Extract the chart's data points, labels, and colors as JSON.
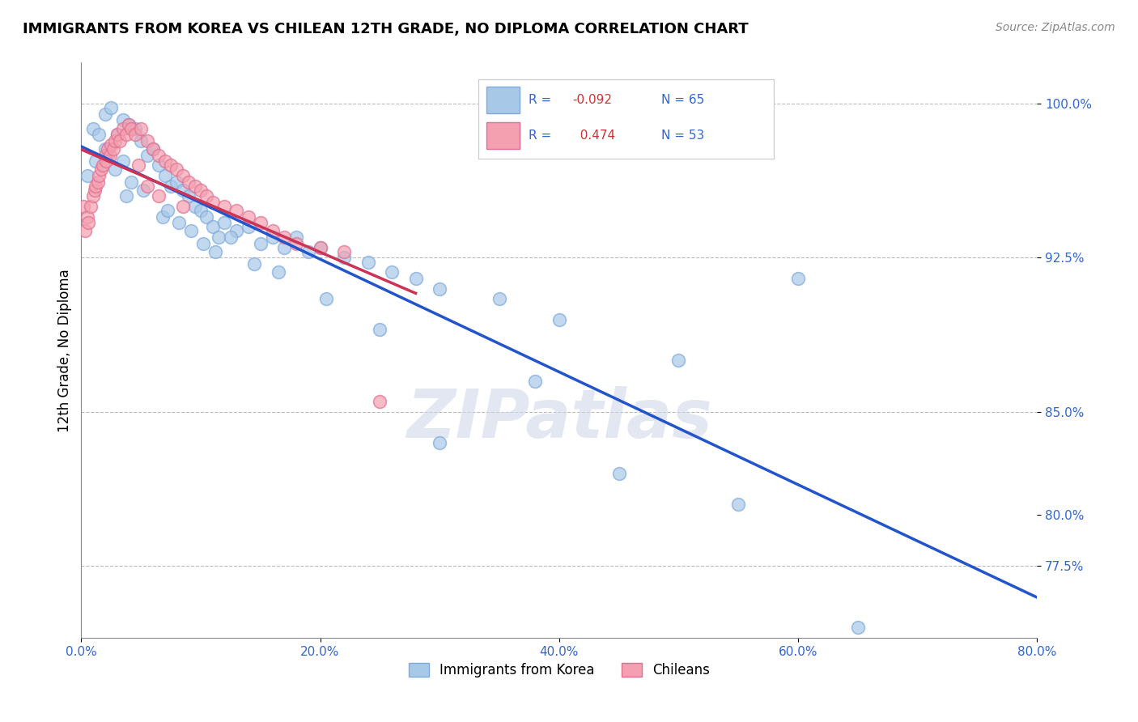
{
  "title": "IMMIGRANTS FROM KOREA VS CHILEAN 12TH GRADE, NO DIPLOMA CORRELATION CHART",
  "source": "Source: ZipAtlas.com",
  "ylabel": "12th Grade, No Diploma",
  "xlim": [
    0.0,
    80.0
  ],
  "ylim": [
    74.0,
    102.0
  ],
  "blue_color": "#a8c8e8",
  "pink_color": "#f4a0b0",
  "blue_edge_color": "#7faadc",
  "pink_edge_color": "#e07090",
  "blue_line_color": "#2255cc",
  "pink_line_color": "#cc3355",
  "watermark": "ZIPatlas",
  "blue_scatter_x": [
    0.5,
    1.0,
    1.5,
    2.0,
    2.0,
    2.5,
    3.0,
    3.5,
    3.5,
    4.0,
    4.5,
    5.0,
    5.5,
    6.0,
    6.5,
    7.0,
    7.5,
    8.0,
    8.5,
    9.0,
    9.5,
    10.0,
    10.5,
    11.0,
    11.5,
    12.0,
    13.0,
    14.0,
    15.0,
    16.0,
    17.0,
    18.0,
    19.0,
    20.0,
    22.0,
    24.0,
    26.0,
    28.0,
    30.0,
    35.0,
    40.0,
    50.0,
    60.0,
    65.0,
    2.2,
    3.8,
    6.8,
    1.2,
    2.8,
    4.2,
    5.2,
    8.2,
    12.5,
    20.5,
    25.0,
    30.0,
    38.0,
    45.0,
    55.0,
    10.2,
    14.5,
    16.5,
    9.2,
    11.2,
    7.2
  ],
  "blue_scatter_y": [
    96.5,
    98.8,
    98.5,
    99.5,
    97.8,
    99.8,
    98.5,
    99.2,
    97.2,
    99.0,
    98.8,
    98.2,
    97.5,
    97.8,
    97.0,
    96.5,
    96.0,
    96.2,
    95.8,
    95.5,
    95.0,
    94.8,
    94.5,
    94.0,
    93.5,
    94.2,
    93.8,
    94.0,
    93.2,
    93.5,
    93.0,
    93.5,
    92.8,
    93.0,
    92.5,
    92.3,
    91.8,
    91.5,
    91.0,
    90.5,
    89.5,
    87.5,
    91.5,
    74.5,
    97.5,
    95.5,
    94.5,
    97.2,
    96.8,
    96.2,
    95.8,
    94.2,
    93.5,
    90.5,
    89.0,
    83.5,
    86.5,
    82.0,
    80.5,
    93.2,
    92.2,
    91.8,
    93.8,
    92.8,
    94.8
  ],
  "pink_scatter_x": [
    0.2,
    0.3,
    0.5,
    0.6,
    0.8,
    1.0,
    1.1,
    1.2,
    1.4,
    1.5,
    1.7,
    1.8,
    2.0,
    2.1,
    2.2,
    2.4,
    2.5,
    2.7,
    2.8,
    3.0,
    3.2,
    3.5,
    3.8,
    4.0,
    4.2,
    4.5,
    4.8,
    5.0,
    5.5,
    5.5,
    6.0,
    6.5,
    6.5,
    7.0,
    7.5,
    8.0,
    8.5,
    8.5,
    9.0,
    9.5,
    10.0,
    10.5,
    11.0,
    12.0,
    13.0,
    14.0,
    15.0,
    16.0,
    17.0,
    18.0,
    20.0,
    22.0,
    25.0
  ],
  "pink_scatter_y": [
    95.0,
    93.8,
    94.5,
    94.2,
    95.0,
    95.5,
    95.8,
    96.0,
    96.2,
    96.5,
    96.8,
    97.0,
    97.5,
    97.2,
    97.8,
    97.5,
    98.0,
    97.8,
    98.2,
    98.5,
    98.2,
    98.8,
    98.5,
    99.0,
    98.8,
    98.5,
    97.0,
    98.8,
    98.2,
    96.0,
    97.8,
    97.5,
    95.5,
    97.2,
    97.0,
    96.8,
    96.5,
    95.0,
    96.2,
    96.0,
    95.8,
    95.5,
    95.2,
    95.0,
    94.8,
    94.5,
    94.2,
    93.8,
    93.5,
    93.2,
    93.0,
    92.8,
    85.5
  ]
}
